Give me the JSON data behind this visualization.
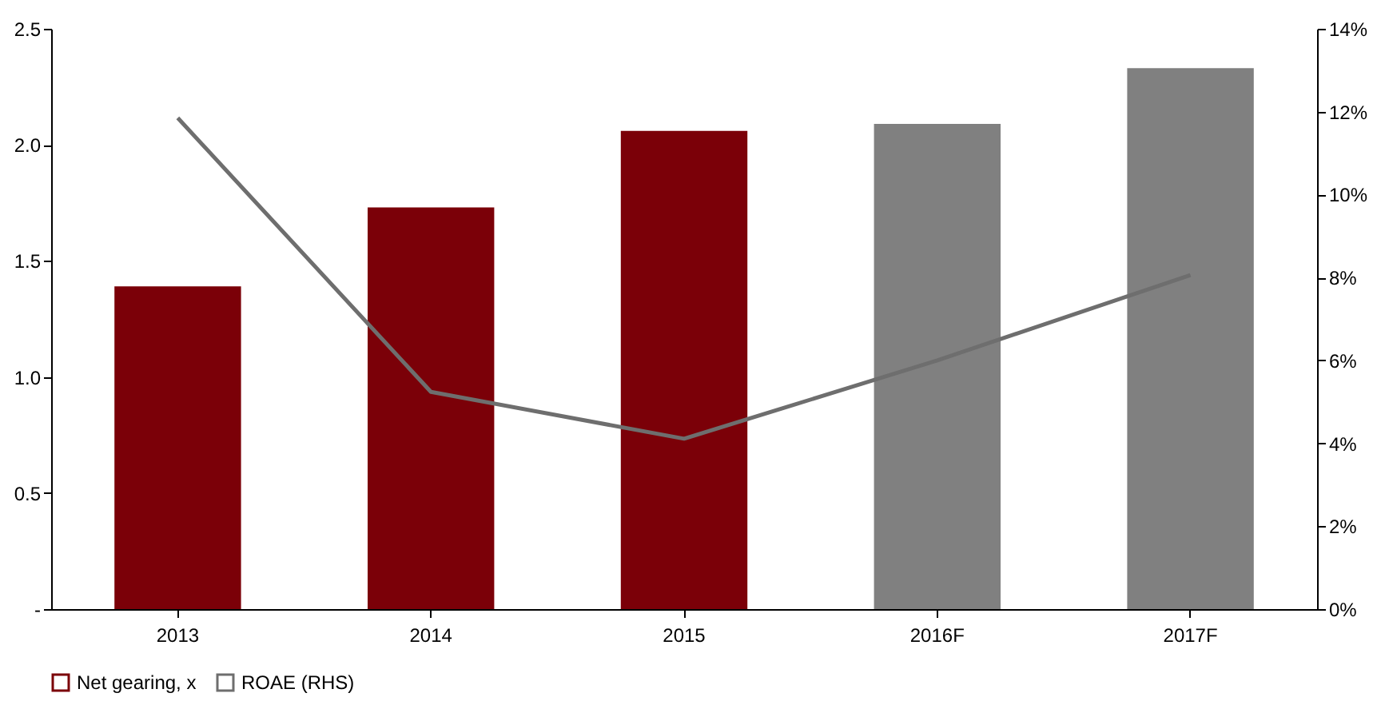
{
  "chart_data": {
    "type": "bar",
    "categories": [
      "2013",
      "2014",
      "2015",
      "2016F",
      "2017F"
    ],
    "series": [
      {
        "name": "Net gearing, x",
        "color": "#7b0008",
        "colors": [
          "#7b0008",
          "#7b0008",
          "#7b0008",
          "#808080",
          "#808080"
        ],
        "values": [
          1.39,
          1.73,
          2.06,
          2.09,
          2.33
        ]
      },
      {
        "name": "ROAE (RHS)",
        "type": "line",
        "axis": "y2",
        "color": "#6e6e6e",
        "values": [
          11.85,
          5.24,
          4.11,
          6.0,
          8.06
        ]
      }
    ],
    "ylim": [
      0,
      2.5
    ],
    "yticks": [
      {
        "value": 0,
        "label": "-"
      },
      0.5,
      {
        "value": 1,
        "label": "1.0"
      },
      1.5,
      {
        "value": 2,
        "label": "2.0"
      },
      2.5
    ],
    "y2lim": [
      0,
      14
    ],
    "y2ticks": [
      {
        "value": 0,
        "label": "0%"
      },
      {
        "value": 2,
        "label": "2%"
      },
      {
        "value": 4,
        "label": "4%"
      },
      {
        "value": 6,
        "label": "6%"
      },
      {
        "value": 8,
        "label": "8%"
      },
      {
        "value": 10,
        "label": "10%"
      },
      {
        "value": 12,
        "label": "12%"
      },
      {
        "value": 14,
        "label": "14%"
      }
    ],
    "legend": "bottom",
    "grid": false
  }
}
